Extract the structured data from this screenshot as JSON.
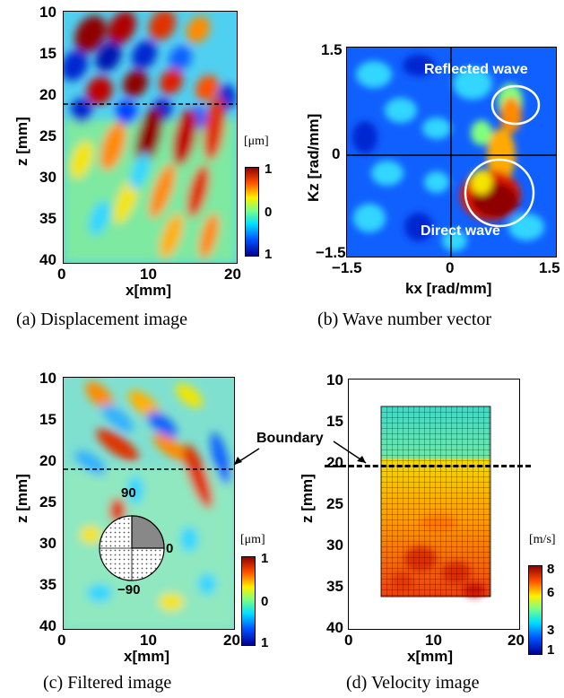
{
  "panels": {
    "a": {
      "caption": "(a) Displacement image",
      "ylabel": "z [mm]",
      "xlabel": "x[mm]",
      "yticks": [
        "10",
        "15",
        "20",
        "25",
        "30",
        "35",
        "40"
      ],
      "xticks": [
        "0",
        "10",
        "20"
      ],
      "colorbar_unit": "[μm]",
      "colorbar_ticks": [
        "1",
        "0",
        "1"
      ]
    },
    "b": {
      "caption": "(b) Wave number vector",
      "ylabel": "Kz [rad/mm]",
      "xlabel": "kx [rad/mm]",
      "yticks": [
        "1.5",
        "0",
        "−1.5"
      ],
      "xticks": [
        "−1.5",
        "0",
        "1.5"
      ],
      "label_reflected": "Reflected wave",
      "label_direct": "Direct wave"
    },
    "c": {
      "caption": "(c) Filtered image",
      "ylabel": "z [mm]",
      "xlabel": "x[mm]",
      "yticks": [
        "10",
        "15",
        "20",
        "25",
        "30",
        "35",
        "40"
      ],
      "xticks": [
        "0",
        "10",
        "20"
      ],
      "colorbar_unit": "[μm]",
      "colorbar_ticks": [
        "1",
        "0",
        "1"
      ],
      "inset_labels": {
        "top": "90",
        "right": "0",
        "bottom": "−90"
      }
    },
    "d": {
      "caption": "(d) Velocity image",
      "ylabel": "z [mm]",
      "xlabel": "x[mm]",
      "yticks": [
        "10",
        "15",
        "20",
        "25",
        "30",
        "35",
        "40"
      ],
      "xticks": [
        "0",
        "10",
        "20"
      ],
      "colorbar_unit": "[m/s]",
      "colorbar_ticks": [
        "8",
        "6",
        "3",
        "1"
      ],
      "boundary_label": "Boundary"
    }
  },
  "boundary_depth_mm": 21,
  "colors": {
    "deep_red": "#8f0000",
    "red": "#e01a00",
    "orange": "#ff8a00",
    "yellow": "#f5e400",
    "cyan": "#33d6ff",
    "blue": "#0028d0",
    "navy": "#00008f"
  }
}
